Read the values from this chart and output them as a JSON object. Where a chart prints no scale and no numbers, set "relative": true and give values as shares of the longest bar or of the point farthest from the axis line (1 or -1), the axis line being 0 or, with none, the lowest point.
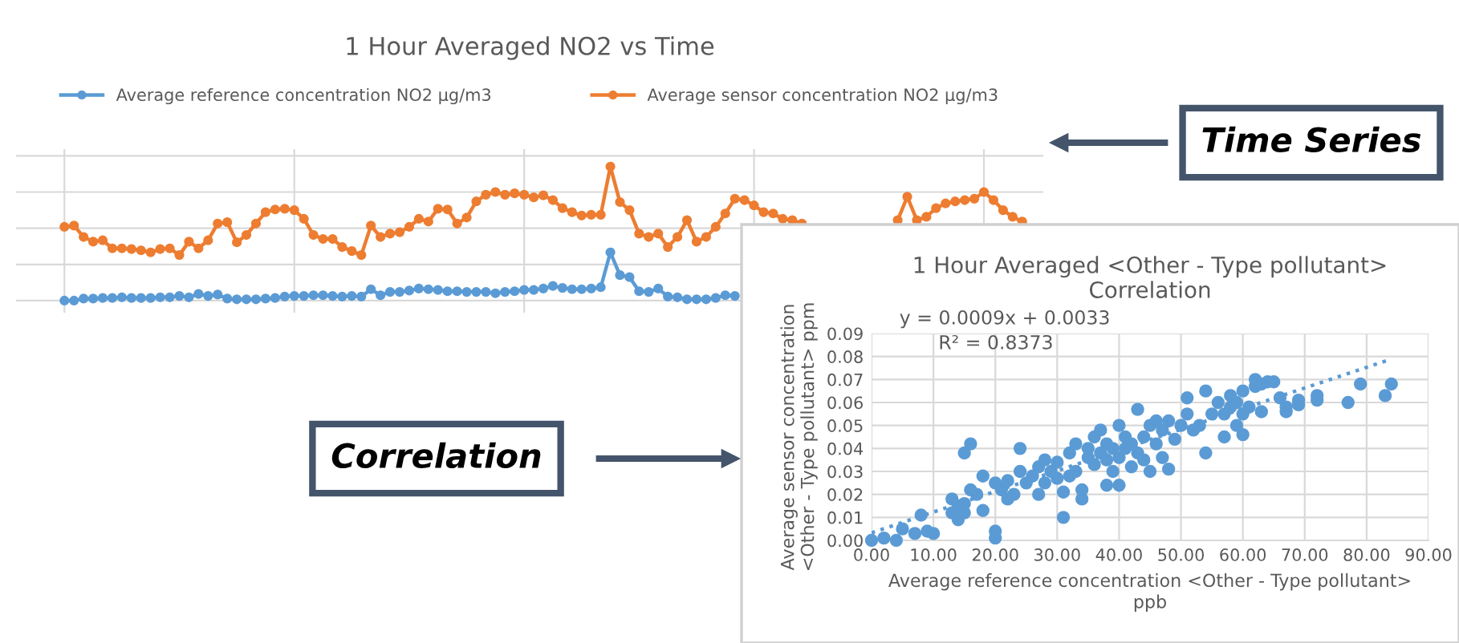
{
  "chart_data": [
    {
      "type": "line",
      "title": "1 Hour Averaged NO2 vs Time",
      "relative": true,
      "grid": true,
      "legend": "top",
      "marker": "circle",
      "line_style": "solid",
      "categories": [
        null,
        null,
        null,
        null,
        null,
        null,
        null,
        null,
        null,
        null,
        null,
        null,
        null,
        null,
        null,
        null,
        null,
        null,
        null,
        null,
        null,
        null,
        null,
        null,
        null,
        null,
        null,
        null,
        null,
        null,
        null,
        null,
        null,
        null,
        null,
        null,
        null,
        null,
        null,
        null,
        null,
        null,
        null,
        null,
        null,
        null,
        null,
        null,
        null,
        null,
        null,
        null,
        null,
        null,
        null,
        null,
        null,
        null,
        null,
        null,
        null,
        null,
        null,
        null,
        null,
        null,
        null,
        null,
        null,
        null,
        null,
        null,
        null,
        null,
        null,
        null,
        null,
        null,
        null,
        null,
        null,
        null,
        null,
        null,
        null,
        null,
        null,
        null,
        null,
        null,
        null,
        null,
        null,
        null,
        null,
        null,
        null,
        null,
        null,
        null,
        null
      ],
      "series": [
        {
          "name": "Average reference concentration NO2 µg/m3",
          "color": "#5b9bd5",
          "values": [
            0,
            0,
            0.015,
            0.015,
            0.02,
            0.02,
            0.025,
            0.02,
            0.02,
            0.02,
            0.025,
            0.025,
            0.035,
            0.025,
            0.05,
            0.035,
            0.045,
            0.015,
            0.01,
            0.01,
            0.01,
            0.015,
            0.02,
            0.03,
            0.035,
            0.035,
            0.04,
            0.04,
            0.035,
            0.03,
            0.035,
            0.03,
            0.085,
            0.04,
            0.065,
            0.065,
            0.075,
            0.09,
            0.085,
            0.08,
            0.07,
            0.07,
            0.065,
            0.065,
            0.065,
            0.055,
            0.065,
            0.07,
            0.08,
            0.08,
            0.09,
            0.11,
            0.095,
            0.085,
            0.085,
            0.09,
            0.1,
            0.36,
            0.19,
            0.175,
            0.07,
            0.065,
            0.09,
            0.03,
            0.025,
            0.01,
            0.01,
            0.01,
            0.02,
            0.04,
            0.035,
            null,
            null,
            null,
            null,
            null,
            null,
            null,
            null,
            null,
            null,
            null,
            null,
            null,
            null,
            null,
            null,
            null,
            null,
            null,
            null,
            null,
            null,
            null,
            null,
            null,
            null,
            null,
            null,
            null,
            null
          ]
        },
        {
          "name": "Average sensor concentration NO2 µg/m3",
          "color": "#ed7d31",
          "values": [
            0.55,
            0.56,
            0.475,
            0.44,
            0.45,
            0.39,
            0.39,
            0.385,
            0.375,
            0.36,
            0.385,
            0.39,
            0.34,
            0.44,
            0.39,
            0.45,
            0.575,
            0.585,
            0.435,
            0.49,
            0.575,
            0.66,
            0.68,
            0.685,
            0.675,
            0.61,
            0.49,
            0.46,
            0.46,
            0.4,
            0.37,
            0.34,
            0.56,
            0.475,
            0.5,
            0.51,
            0.55,
            0.61,
            0.59,
            0.685,
            0.68,
            0.575,
            0.62,
            0.74,
            0.79,
            0.81,
            0.79,
            0.8,
            0.79,
            0.77,
            0.785,
            0.75,
            0.69,
            0.66,
            0.635,
            0.64,
            0.64,
            1.0,
            0.735,
            0.675,
            0.5,
            0.475,
            0.5,
            0.4,
            0.475,
            0.6,
            0.44,
            0.475,
            0.55,
            0.65,
            0.76,
            0.75,
            0.71,
            0.66,
            0.65,
            0.61,
            0.6,
            0.575,
            null,
            null,
            null,
            null,
            null,
            null,
            null,
            null,
            null,
            0.6,
            0.775,
            0.6,
            0.625,
            0.69,
            0.725,
            0.74,
            0.75,
            0.76,
            0.81,
            0.75,
            0.675,
            0.625,
            0.59
          ]
        }
      ]
    },
    {
      "type": "scatter",
      "title": "1 Hour Averaged <Other - Type pollutant>\nCorrelation",
      "xlabel": "Average reference concentration <Other - Type pollutant>\nppb",
      "ylabel": "Average sensor concentration\n<Other - Type pollutant> ppm",
      "grid": true,
      "marker": "circle",
      "xlim": [
        0,
        90
      ],
      "ylim": [
        0,
        0.09
      ],
      "xticks": [
        {
          "value": 0,
          "label": "0.00"
        },
        {
          "value": 10,
          "label": "10.00"
        },
        {
          "value": 20,
          "label": "20.00"
        },
        {
          "value": 30,
          "label": "30.00"
        },
        {
          "value": 40,
          "label": "40.00"
        },
        {
          "value": 50,
          "label": "50.00"
        },
        {
          "value": 60,
          "label": "60.00"
        },
        {
          "value": 70,
          "label": "70.00"
        },
        {
          "value": 80,
          "label": "80.00"
        },
        {
          "value": 90,
          "label": "90.00"
        }
      ],
      "yticks": [
        {
          "value": 0,
          "label": "0.00"
        },
        {
          "value": 0.01,
          "label": "0.01"
        },
        {
          "value": 0.02,
          "label": "0.02"
        },
        {
          "value": 0.03,
          "label": "0.03"
        },
        {
          "value": 0.04,
          "label": "0.04"
        },
        {
          "value": 0.05,
          "label": "0.05"
        },
        {
          "value": 0.06,
          "label": "0.06"
        },
        {
          "value": 0.07,
          "label": "0.07"
        },
        {
          "value": 0.08,
          "label": "0.08"
        },
        {
          "value": 0.09,
          "label": "0.09"
        }
      ],
      "annotations": [
        "y = 0.0009x + 0.0033",
        "R² = 0.8373"
      ],
      "series": [
        {
          "type": "scatter",
          "color": "#5b9bd5",
          "x": [
            0,
            2,
            4,
            5,
            7,
            8,
            9,
            10,
            13,
            13,
            14,
            14,
            15,
            15,
            15,
            16,
            16,
            17,
            18,
            18,
            20,
            20,
            20,
            21,
            22,
            22,
            23,
            24,
            24,
            25,
            26,
            27,
            27,
            28,
            28,
            29,
            30,
            30,
            31,
            31,
            32,
            32,
            33,
            33,
            34,
            34,
            35,
            35,
            36,
            36,
            37,
            37,
            38,
            38,
            38,
            39,
            39,
            40,
            40,
            40,
            41,
            41,
            42,
            42,
            43,
            43,
            44,
            44,
            45,
            45,
            46,
            46,
            47,
            47,
            48,
            48,
            49,
            50,
            51,
            51,
            52,
            53,
            54,
            54,
            55,
            56,
            57,
            57,
            58,
            58,
            59,
            59,
            60,
            60,
            60,
            61,
            62,
            62,
            63,
            63,
            64,
            65,
            66,
            67,
            67,
            69,
            69,
            72,
            72,
            77,
            79,
            83,
            84
          ],
          "values": [
            0,
            0.001,
            0,
            0.005,
            0.003,
            0.011,
            0.004,
            0.003,
            0.018,
            0.012,
            0.015,
            0.009,
            0.016,
            0.012,
            0.038,
            0.042,
            0.022,
            0.02,
            0.028,
            0.013,
            0.004,
            0.001,
            0.025,
            0.022,
            0.018,
            0.026,
            0.02,
            0.04,
            0.03,
            0.025,
            0.028,
            0.032,
            0.02,
            0.025,
            0.035,
            0.03,
            0.027,
            0.034,
            0.01,
            0.021,
            0.038,
            0.028,
            0.042,
            0.03,
            0.018,
            0.022,
            0.036,
            0.04,
            0.033,
            0.045,
            0.038,
            0.048,
            0.024,
            0.035,
            0.042,
            0.03,
            0.04,
            0.024,
            0.05,
            0.036,
            0.045,
            0.04,
            0.032,
            0.042,
            0.057,
            0.038,
            0.045,
            0.035,
            0.05,
            0.03,
            0.042,
            0.052,
            0.036,
            0.048,
            0.031,
            0.052,
            0.044,
            0.05,
            0.062,
            0.055,
            0.048,
            0.05,
            0.038,
            0.065,
            0.055,
            0.06,
            0.045,
            0.055,
            0.058,
            0.063,
            0.05,
            0.06,
            0.046,
            0.065,
            0.055,
            0.058,
            0.07,
            0.067,
            0.056,
            0.068,
            0.069,
            0.069,
            0.062,
            0.056,
            0.058,
            0.061,
            0.059,
            0.063,
            0.061,
            0.06,
            0.068,
            0.063,
            0.068
          ]
        },
        {
          "type": "line",
          "color": "#5b9bd5",
          "line_style": "dotted",
          "marker": "none",
          "x": [
            0,
            84
          ],
          "values": [
            0.0033,
            0.0789
          ]
        }
      ]
    },
    {
      "type": "other",
      "annotations": [
        "Time Series",
        "Correlation"
      ]
    }
  ]
}
